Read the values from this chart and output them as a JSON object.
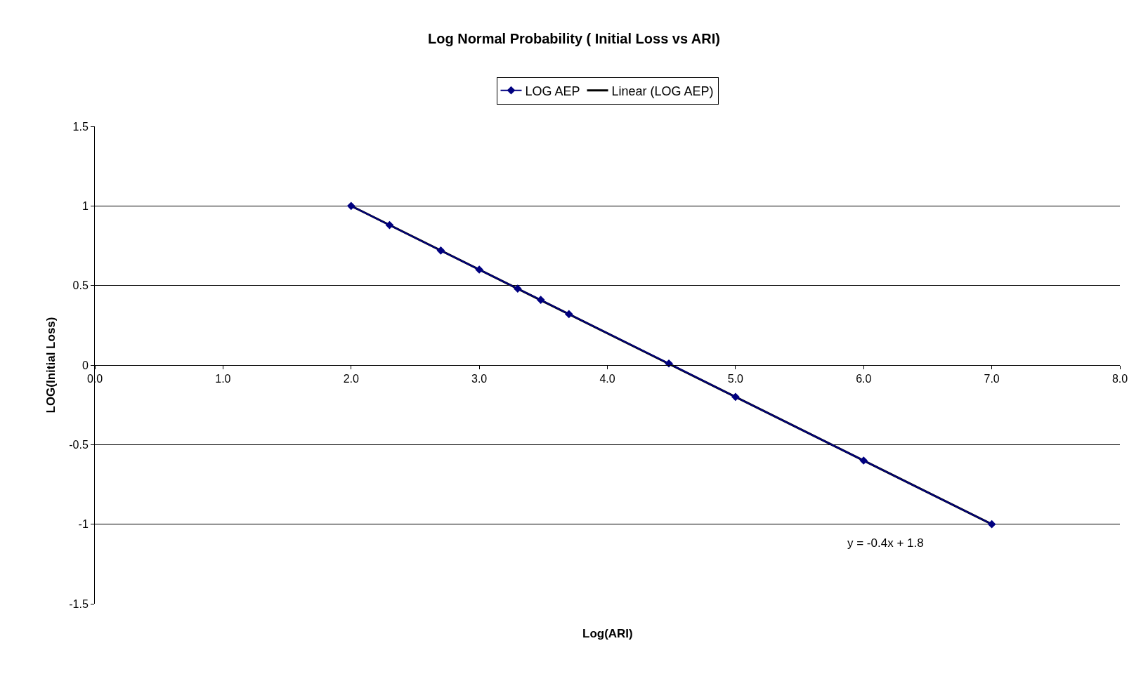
{
  "chart_data": {
    "type": "line",
    "title": "Log Normal Probability ( Initial Loss vs ARI)",
    "xlabel": "Log(ARI)",
    "ylabel": "LOG(Initial Loss)",
    "x": [
      2.0,
      2.3,
      2.7,
      3.0,
      3.3,
      3.48,
      3.7,
      4.48,
      5.0,
      6.0,
      7.0
    ],
    "series": [
      {
        "name": "LOG AEP",
        "color": "#000080",
        "marker": "diamond",
        "values": [
          1.0,
          0.88,
          0.72,
          0.6,
          0.48,
          0.41,
          0.32,
          0.01,
          -0.2,
          -0.6,
          -1.0
        ]
      },
      {
        "name": "Linear (LOG AEP)",
        "color": "#000000",
        "marker": "none",
        "x": [
          2.0,
          7.0
        ],
        "values": [
          1.0,
          -1.0
        ]
      }
    ],
    "xlim": [
      0,
      8
    ],
    "xticks": [
      {
        "value": 0,
        "label": "0.0"
      },
      {
        "value": 1,
        "label": "1.0"
      },
      {
        "value": 2,
        "label": "2.0"
      },
      {
        "value": 3,
        "label": "3.0"
      },
      {
        "value": 4,
        "label": "4.0"
      },
      {
        "value": 5,
        "label": "5.0"
      },
      {
        "value": 6,
        "label": "6.0"
      },
      {
        "value": 7,
        "label": "7.0"
      },
      {
        "value": 8,
        "label": "8.0"
      }
    ],
    "ylim": [
      -1.5,
      1.5
    ],
    "yticks": [
      -1.5,
      -1,
      -0.5,
      0,
      0.5,
      1,
      1.5
    ],
    "grid": "y",
    "legend": "top",
    "annotations": [
      "y = -0.4x + 1.8"
    ]
  }
}
